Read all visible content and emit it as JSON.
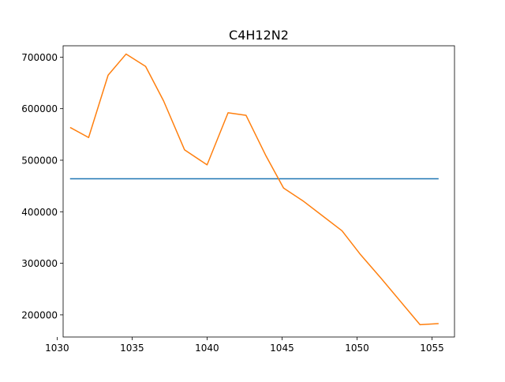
{
  "chart_data": {
    "type": "line",
    "title": "C4H12N2",
    "xlabel": "",
    "ylabel": "",
    "xlim": [
      1030.4,
      1056.5
    ],
    "ylim": [
      157000,
      722000
    ],
    "x_ticks": [
      1030,
      1035,
      1040,
      1045,
      1050,
      1055
    ],
    "y_ticks": [
      200000,
      300000,
      400000,
      500000,
      600000,
      700000
    ],
    "x_tick_labels": [
      "1030",
      "1035",
      "1040",
      "1045",
      "1050",
      "1055"
    ],
    "y_tick_labels": [
      "200000",
      "300000",
      "400000",
      "500000",
      "600000",
      "700000"
    ],
    "grid": false,
    "series": [
      {
        "color": "#1f77b4",
        "x": [
          1030.9,
          1055.4
        ],
        "y": [
          464000,
          464000
        ]
      },
      {
        "color": "#ff7f0e",
        "x": [
          1030.9,
          1032.1,
          1033.4,
          1034.6,
          1035.9,
          1037.1,
          1038.5,
          1040.0,
          1041.4,
          1042.6,
          1043.9,
          1045.1,
          1046.4,
          1047.7,
          1049.0,
          1050.2,
          1051.6,
          1052.9,
          1054.2,
          1055.4
        ],
        "y": [
          563000,
          544000,
          665000,
          706000,
          682000,
          615000,
          520000,
          491000,
          592000,
          587000,
          510000,
          446000,
          421000,
          392000,
          363000,
          318000,
          271000,
          226000,
          181000,
          183000
        ]
      }
    ]
  }
}
